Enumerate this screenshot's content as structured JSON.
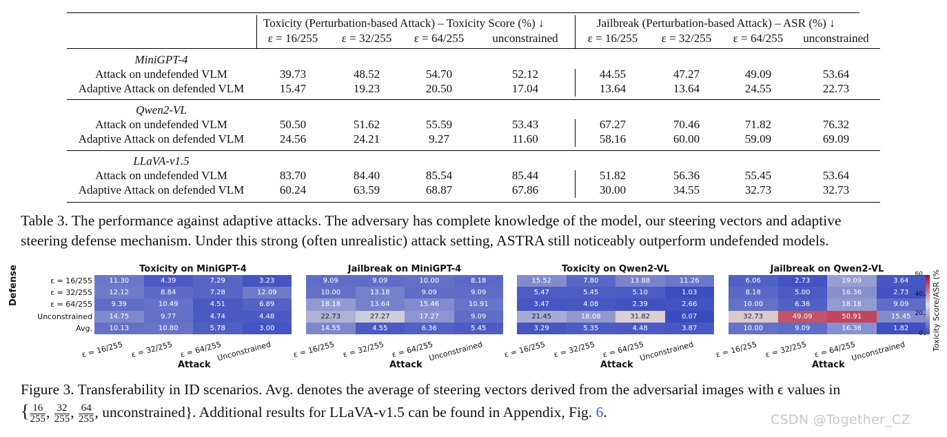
{
  "table": {
    "group_headers": [
      "Toxicity (Perturbation-based Attack) – Toxicity Score (%) ↓",
      "Jailbreak (Perturbation-based Attack) – ASR (%) ↓"
    ],
    "sub_headers": [
      "ε = 16/255",
      "ε = 32/255",
      "ε = 64/255",
      "unconstrained"
    ],
    "models": [
      {
        "name": "MiniGPT-4",
        "rows": [
          {
            "label": "Attack on undefended VLM",
            "values": [
              "39.73",
              "48.52",
              "54.70",
              "52.12",
              "44.55",
              "47.27",
              "49.09",
              "53.64"
            ]
          },
          {
            "label": "Adaptive Attack on defended VLM",
            "values": [
              "15.47",
              "19.23",
              "20.50",
              "17.04",
              "13.64",
              "13.64",
              "24.55",
              "22.73"
            ]
          }
        ]
      },
      {
        "name": "Qwen2-VL",
        "rows": [
          {
            "label": "Attack on undefended VLM",
            "values": [
              "50.50",
              "51.62",
              "55.59",
              "53.43",
              "67.27",
              "70.46",
              "71.82",
              "76.32"
            ]
          },
          {
            "label": "Adaptive Attack on defended VLM",
            "values": [
              "24.56",
              "24.21",
              "9.27",
              "11.60",
              "58.16",
              "60.00",
              "59.09",
              "69.09"
            ]
          }
        ]
      },
      {
        "name": "LLaVA-v1.5",
        "rows": [
          {
            "label": "Attack on undefended VLM",
            "values": [
              "83.70",
              "84.40",
              "85.54",
              "85.44",
              "51.82",
              "56.36",
              "55.45",
              "53.64"
            ]
          },
          {
            "label": "Adaptive Attack on defended VLM",
            "values": [
              "60.24",
              "63.59",
              "68.87",
              "67.86",
              "30.00",
              "34.55",
              "32.73",
              "32.73"
            ]
          }
        ]
      }
    ]
  },
  "table_caption": {
    "line1": "Table 3. The performance against adaptive attacks. The adversary has complete knowledge of the model, our steering vectors and adaptive",
    "line2": "steering defense mechanism. Under this strong (often unrealistic) attack setting, ASTRA still noticeably outperform undefended models."
  },
  "figure": {
    "y_axis_label": "Defense",
    "x_axis_label": "Attack",
    "row_labels": [
      "ε = 16/255",
      "ε = 32/255",
      "ε = 64/255",
      "Unconstrained",
      "Avg."
    ],
    "col_labels": [
      "ε = 16/255",
      "ε = 32/255",
      "ε = 64/255",
      "Unconstrained"
    ],
    "colorbar": {
      "label": "Toxicity Score/ASR (%",
      "ticks": [
        "60",
        "40",
        "20",
        "0"
      ],
      "min": 0,
      "max": 60
    },
    "colors": {
      "low": "#3b4cc0",
      "mid": "#dddddd",
      "high": "#b40426"
    }
  },
  "chart_data": [
    {
      "type": "heatmap",
      "title": "Toxicity on MiniGPT-4",
      "values": [
        [
          "11.30",
          "4.39",
          "7.29",
          "3.23"
        ],
        [
          "12.12",
          "8.84",
          "7.28",
          "12.09"
        ],
        [
          "9.39",
          "10.49",
          "4.51",
          "6.89"
        ],
        [
          "14.75",
          "9.77",
          "4.74",
          "4.48"
        ],
        [
          "10.13",
          "10.80",
          "5.78",
          "3.00"
        ]
      ]
    },
    {
      "type": "heatmap",
      "title": "Jailbreak on MiniGPT-4",
      "values": [
        [
          "9.09",
          "9.09",
          "10.00",
          "8.18"
        ],
        [
          "10.00",
          "13.18",
          "9.09",
          "9.09"
        ],
        [
          "18.18",
          "13.64",
          "15.46",
          "10.91"
        ],
        [
          "22.73",
          "27.27",
          "17.27",
          "9.09"
        ],
        [
          "14.55",
          "4.55",
          "6.36",
          "5.45"
        ]
      ]
    },
    {
      "type": "heatmap",
      "title": "Toxicity on Qwen2-VL",
      "values": [
        [
          "15.52",
          "7.80",
          "13.88",
          "11.26"
        ],
        [
          "5.47",
          "5.45",
          "5.10",
          "1.03"
        ],
        [
          "3.47",
          "4.08",
          "2.39",
          "2.66"
        ],
        [
          "21.45",
          "18.08",
          "31.82",
          "0.07"
        ],
        [
          "3.29",
          "5.35",
          "4.48",
          "3.87"
        ]
      ]
    },
    {
      "type": "heatmap",
      "title": "Jailbreak on Qwen2-VL",
      "values": [
        [
          "6.06",
          "2.73",
          "19.09",
          "3.64"
        ],
        [
          "8.18",
          "5.00",
          "16.36",
          "2.73"
        ],
        [
          "10.00",
          "6.36",
          "18.18",
          "9.09"
        ],
        [
          "32.73",
          "49.09",
          "50.91",
          "15.45"
        ],
        [
          "10.00",
          "9.09",
          "16.36",
          "1.82"
        ]
      ]
    }
  ],
  "figure_caption": {
    "line1": "Figure 3. Transferability in ID scenarios. Avg. denotes the average of steering vectors derived from the adversarial images with ϵ values in",
    "set_open": "{",
    "fractions": [
      [
        "16",
        "255"
      ],
      [
        "32",
        "255"
      ],
      [
        "64",
        "255"
      ]
    ],
    "line2_rest": ", unconstrained}. Additional results for LLaVA-v1.5 can be found in Appendix, Fig. ",
    "fig_ref": "6",
    "line2_end": "."
  },
  "watermark": "CSDN @Together_CZ"
}
